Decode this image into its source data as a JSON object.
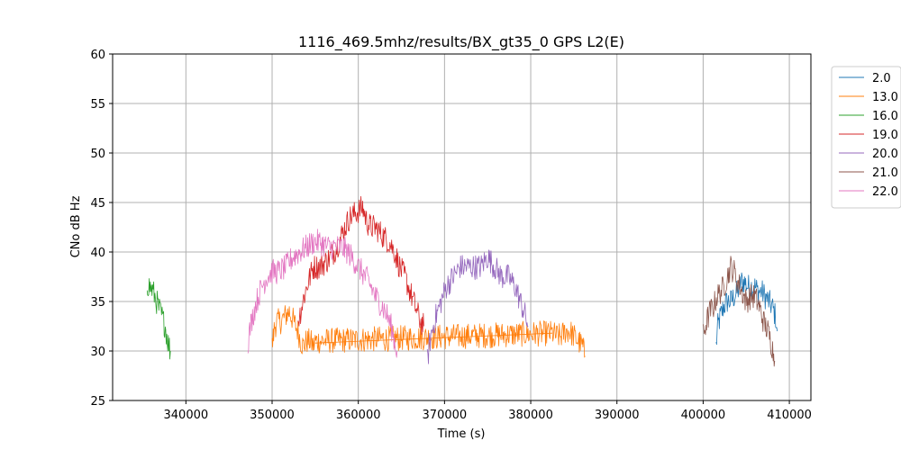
{
  "chart_data": {
    "type": "line",
    "title": "1116_469.5mhz/results/BX_gt35_0 GPS L2(E)",
    "xlabel": "Time (s)",
    "ylabel": "CNo dB Hz",
    "xlim": [
      331500,
      412500
    ],
    "ylim": [
      25,
      60
    ],
    "x_ticks": [
      340000,
      350000,
      360000,
      370000,
      380000,
      390000,
      400000,
      410000
    ],
    "y_ticks": [
      25,
      30,
      35,
      40,
      45,
      50,
      55,
      60
    ],
    "grid": true,
    "legend_position": "outside-right",
    "series": [
      {
        "name": "2.0",
        "color": "#1f77b4",
        "x": [
          401500,
          401700,
          402000,
          402400,
          402800,
          403200,
          403600,
          404000,
          404400,
          404800,
          405200,
          405600,
          406000,
          406400,
          406800,
          407200,
          407600,
          408000,
          408400,
          408600
        ],
        "y": [
          30.5,
          32.5,
          33.5,
          34.5,
          35,
          35,
          35.5,
          36,
          37,
          37,
          36.5,
          36.5,
          36.5,
          36,
          36,
          35.5,
          35,
          34.5,
          33.5,
          32
        ]
      },
      {
        "name": "13.0",
        "color": "#ff7f0e",
        "x": [
          350000,
          350300,
          350600,
          351000,
          351500,
          352000,
          352500,
          353000,
          353300,
          353600,
          354000,
          354400,
          354800,
          355000,
          382500,
          383000,
          383500,
          384000,
          384500,
          385000,
          385500,
          386000,
          386300
        ],
        "y": [
          30.5,
          32.5,
          33,
          33,
          33.5,
          34,
          33,
          32,
          31,
          30.5,
          31,
          31,
          30.5,
          31,
          31.8,
          31.5,
          31.5,
          32,
          32,
          31.5,
          31,
          30.5,
          29.5
        ],
        "x2": [
          355000,
          382500
        ],
        "y2": [
          30.8,
          31.8
        ]
      },
      {
        "name": "16.0",
        "color": "#2ca02c",
        "x": [
          335500,
          335800,
          336200,
          336600,
          337000,
          337300,
          337600,
          337900,
          338200
        ],
        "y": [
          36.8,
          36.5,
          36,
          35,
          34,
          33.3,
          32.5,
          31,
          30
        ]
      },
      {
        "name": "19.0",
        "color": "#d62728",
        "x": [
          353000,
          353300,
          353700,
          354200,
          354800,
          355500,
          356200,
          356800,
          357500,
          358200,
          359000,
          359800,
          360500,
          361000,
          361500,
          362000,
          362500,
          363000,
          363600,
          364200,
          364800,
          365400,
          366000,
          366600,
          367200,
          367600
        ],
        "y": [
          33,
          34,
          35.5,
          37,
          38.5,
          38.5,
          39,
          39.5,
          40.5,
          42,
          43.5,
          44,
          44.5,
          43,
          42.5,
          42.5,
          42,
          41.5,
          41,
          40,
          38.5,
          37.5,
          36,
          34.5,
          33,
          32.5
        ]
      },
      {
        "name": "20.0",
        "color": "#9467bd",
        "x": [
          368000,
          368400,
          369000,
          369600,
          370200,
          371000,
          371800,
          372600,
          373400,
          374200,
          375000,
          375800,
          376600,
          377400,
          378200,
          378800,
          379400,
          379700
        ],
        "y": [
          29,
          31.5,
          33.5,
          35,
          36.5,
          37.5,
          38.5,
          38.5,
          38.5,
          38.5,
          39.5,
          38.5,
          37.5,
          37.5,
          36.5,
          35,
          33.5,
          32.5
        ]
      },
      {
        "name": "21.0",
        "color": "#8c564b",
        "x": [
          400000,
          400400,
          400800,
          401200,
          401600,
          402000,
          402400,
          402800,
          403200,
          403600,
          404000,
          404500,
          405000,
          405500,
          406000,
          406500,
          407000,
          407500,
          408000,
          408300
        ],
        "y": [
          31.5,
          33,
          34,
          34.5,
          35.5,
          36,
          36.5,
          37.5,
          38.5,
          38,
          37,
          36,
          35,
          35.5,
          35.5,
          34.5,
          33,
          32,
          30.5,
          29
        ]
      },
      {
        "name": "22.0",
        "color": "#e377c2",
        "x": [
          347200,
          347600,
          348200,
          348800,
          349400,
          350000,
          350800,
          351600,
          352400,
          353200,
          354000,
          354800,
          355600,
          356400,
          357200,
          358000,
          358800,
          359600,
          360400,
          361200,
          362000,
          362800,
          363400,
          363800,
          364200,
          364500
        ],
        "y": [
          31,
          33,
          35,
          36.5,
          37.5,
          38,
          38,
          38.5,
          39.5,
          40,
          40.5,
          41,
          41,
          40.5,
          40.5,
          40.5,
          40,
          39,
          38,
          37,
          35.5,
          34.5,
          33.5,
          32.5,
          31,
          30
        ]
      }
    ]
  }
}
